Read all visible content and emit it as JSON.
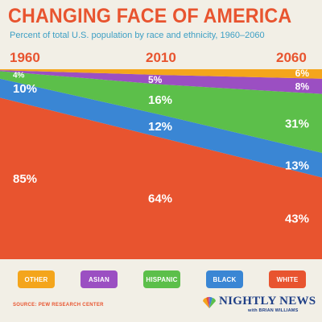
{
  "title": "CHANGING FACE OF AMERICA",
  "subtitle": "Percent of total U.S. population by race and ethnicity, 1960–2060",
  "source": "SOURCE: PEW RESEARCH CENTER",
  "logo": {
    "name": "NIGHTLY NEWS",
    "tagline": "with BRIAN WILLIAMS",
    "icon": "peacock-icon"
  },
  "colors": {
    "other": "#f4a51c",
    "asian": "#9b4fc2",
    "hispanic": "#5cbf4a",
    "black": "#3a86d4",
    "white": "#e8542f"
  },
  "chart_data": {
    "type": "area",
    "stacked": true,
    "x": [
      "1960",
      "2010",
      "2060"
    ],
    "series": [
      {
        "name": "WHITE",
        "values": [
          85,
          64,
          43
        ],
        "labels": [
          "85%",
          "64%",
          "43%"
        ]
      },
      {
        "name": "BLACK",
        "values": [
          10,
          12,
          13
        ],
        "labels": [
          "10%",
          "12%",
          "13%"
        ]
      },
      {
        "name": "HISPANIC",
        "values": [
          4,
          16,
          31
        ],
        "labels": [
          "4%",
          "16%",
          "31%"
        ]
      },
      {
        "name": "ASIAN",
        "values": [
          0.5,
          5,
          8
        ],
        "labels": [
          "",
          "5%",
          "8%"
        ]
      },
      {
        "name": "OTHER",
        "values": [
          0.5,
          3,
          6
        ],
        "labels": [
          "",
          "",
          "6%"
        ]
      }
    ],
    "legend_order": [
      "OTHER",
      "ASIAN",
      "HISPANIC",
      "BLACK",
      "WHITE"
    ],
    "legend_position": "bottom",
    "ylim": [
      0,
      100
    ]
  }
}
